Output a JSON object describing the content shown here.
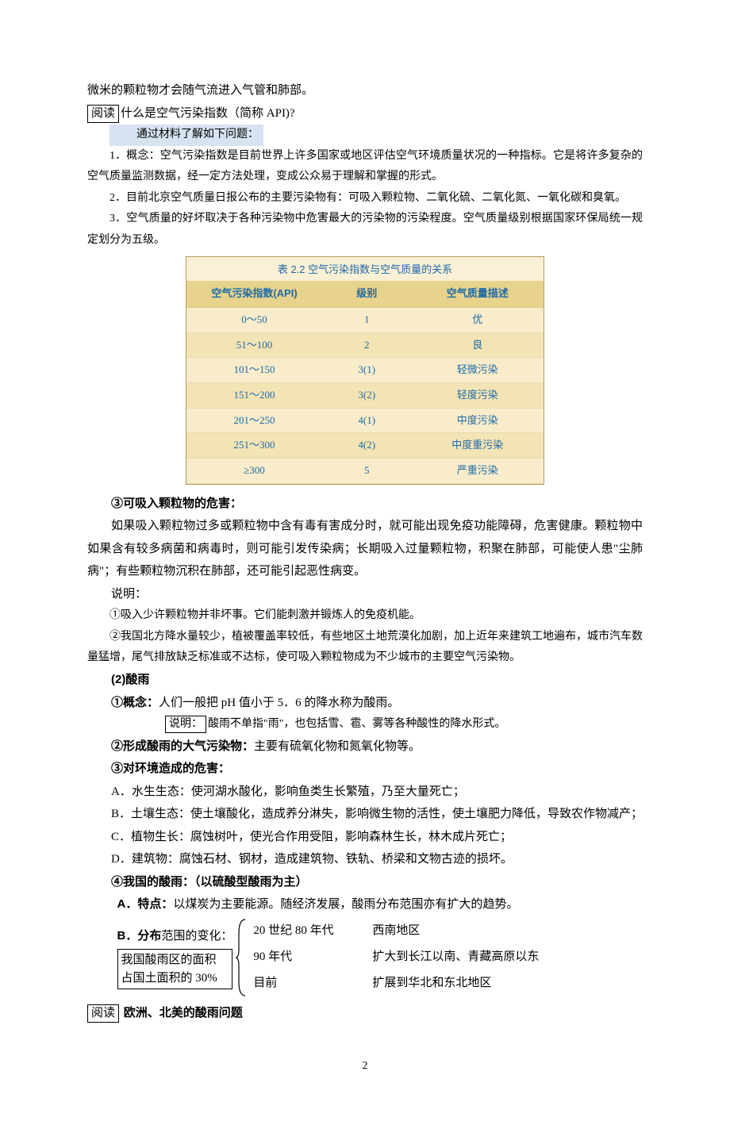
{
  "intro_line": "微米的颗粒物才会随气流进入气管和肺部。",
  "reading1": {
    "box": "阅读",
    "text": "什么是空气污染指数（简称 API)?"
  },
  "section_hl": "通过材料了解如下问题：",
  "p1": "1．概念：空气污染指数是目前世界上许多国家或地区评估空气环境质量状况的一种指标。它是将许多复杂的空气质量监测数据，经一定方法处理，变成公众易于理解和掌握的形式。",
  "p2": "2．目前北京空气质量日报公布的主要污染物有：可吸入颗粒物、二氧化硫、二氧化氮、一氧化碳和臭氧。",
  "p3": "3．空气质量的好坏取决于各种污染物中危害最大的污染物的污染程度。空气质量级别根据国家环保局统一规定划分为五级。",
  "table": {
    "caption": "表 2.2  空气污染指数与空气质量的关系",
    "headers": [
      "空气污染指数(API)",
      "级别",
      "空气质量描述"
    ],
    "rows": [
      {
        "cells": [
          "0～50",
          "1",
          "优"
        ],
        "cls": "odd"
      },
      {
        "cells": [
          "51～100",
          "2",
          "良"
        ],
        "cls": "even"
      },
      {
        "cells": [
          "101～150",
          "3(1)",
          "轻微污染"
        ],
        "cls": "odd"
      },
      {
        "cells": [
          "151～200",
          "3(2)",
          "轻度污染"
        ],
        "cls": "even"
      },
      {
        "cells": [
          "201～250",
          "4(1)",
          "中度污染"
        ],
        "cls": "odd"
      },
      {
        "cells": [
          "251～300",
          "4(2)",
          "中度重污染"
        ],
        "cls": "even"
      },
      {
        "cells": [
          "≥300",
          "5",
          "严重污染"
        ],
        "cls": "odd"
      }
    ],
    "col_widths": [
      "38%",
      "25%",
      "37%"
    ]
  },
  "h_harm": "③可吸入颗粒物的危害：",
  "harm_p1": "如果吸入颗粒物过多或颗粒物中含有毒有害成分时，就可能出现免疫功能障碍，危害健康。颗粒物中如果含有较多病菌和病毒时，则可能引发传染病；长期吸入过量颗粒物，积聚在肺部，可能使人患\"尘肺病\"；有些颗粒物沉积在肺部，还可能引起恶性病变。",
  "explain_label": "说明：",
  "exp1": "①吸入少许颗粒物并非坏事。它们能刺激并锻炼人的免疫机能。",
  "exp2": "②我国北方降水量较少，植被覆盖率较低，有些地区土地荒漠化加剧，加上近年来建筑工地遍布，城市汽车数量猛增，尾气排放缺乏标准或不达标，使可吸入颗粒物成为不少城市的主要空气污染物。",
  "h_acid": "(2)酸雨",
  "acid_concept_label": "①概念：",
  "acid_concept_text": "人们一般把 pH 值小于 5．6 的降水称为酸雨。",
  "acid_note_box": "说明：",
  "acid_note_text": "酸雨不单指\"雨\"，也包括雪、雹、雾等各种酸性的降水形式。",
  "acid_form_label": "②形成酸雨的大气污染物：",
  "acid_form_text": "主要有硫氧化物和氮氧化物等。",
  "acid_harm_label": "③对环境造成的危害：",
  "harm_a": "A．水生生态：使河湖水酸化，影响鱼类生长繁殖，乃至大量死亡；",
  "harm_b": "B．土壤生态：使土壤酸化，造成养分淋失，影响微生物的活性，使土壤肥力降低，导致农作物减产；",
  "harm_c": "C．植物生长：腐蚀树叶，使光合作用受阻，影响森林生长，林木成片死亡；",
  "harm_d": "D．建筑物：腐蚀石材、钢材，造成建筑物、铁轨、桥梁和文物古迹的损坏。",
  "cn_acid_label": "④我国的酸雨：（以硫酸型酸雨为主）",
  "cn_a_label": "A．特点：",
  "cn_a_text": "以煤炭为主要能源。随经济发展，酸雨分布范围亦有扩大的趋势。",
  "cn_b_label": "B．分布",
  "cn_b_suffix": "范围的变化：",
  "bracket_left_line2": "我国酸雨区的面积",
  "bracket_left_line3": "占国土面积的 30%",
  "bracket_rows": [
    {
      "c1": "20 世纪 80 年代",
      "c2": "西南地区"
    },
    {
      "c1": "90 年代",
      "c2": "扩大到长江以南、青藏高原以东"
    },
    {
      "c1": "目前",
      "c2": "扩展到华北和东北地区"
    }
  ],
  "reading2": {
    "box": "阅读",
    "text": "欧洲、北美的酸雨问题"
  },
  "page_number": "2"
}
